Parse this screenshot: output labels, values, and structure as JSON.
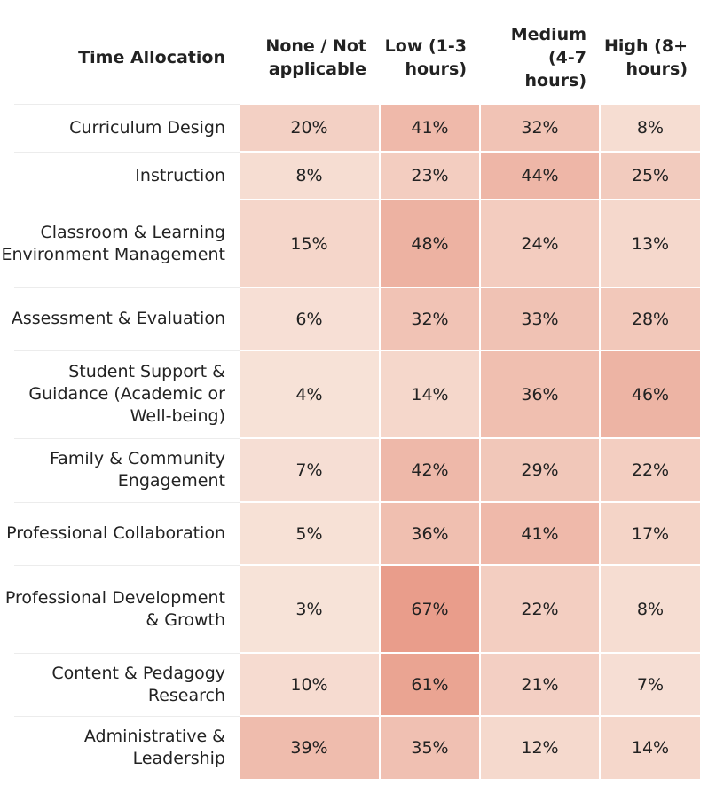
{
  "chart_data": {
    "type": "heatmap",
    "title": "",
    "row_header": "Time Allocation",
    "columns": [
      "None / Not applicable",
      "Low (1-3 hours)",
      "Medium (4-7 hours)",
      "High (8+ hours)"
    ],
    "rows": [
      {
        "label": "Curriculum Design",
        "values": [
          20,
          41,
          32,
          8
        ]
      },
      {
        "label": "Instruction",
        "values": [
          8,
          23,
          44,
          25
        ]
      },
      {
        "label": "Classroom & Learning Environment Management",
        "values": [
          15,
          48,
          24,
          13
        ]
      },
      {
        "label": "Assessment & Evaluation",
        "values": [
          6,
          32,
          33,
          28
        ]
      },
      {
        "label": "Student Support & Guidance (Academic or Well-being)",
        "values": [
          4,
          14,
          36,
          46
        ]
      },
      {
        "label": "Family & Community Engagement",
        "values": [
          7,
          42,
          29,
          22
        ]
      },
      {
        "label": "Professional Collaboration",
        "values": [
          5,
          36,
          41,
          17
        ]
      },
      {
        "label": "Professional Development & Growth",
        "values": [
          3,
          67,
          22,
          8
        ]
      },
      {
        "label": "Content & Pedagogy Research",
        "values": [
          10,
          61,
          21,
          7
        ]
      },
      {
        "label": "Administrative & Leadership",
        "values": [
          39,
          35,
          12,
          14
        ]
      }
    ],
    "value_suffix": "%",
    "color_scale": {
      "low": "#f8e6dc",
      "high": "#e89a87",
      "min": 0,
      "max": 70
    }
  }
}
